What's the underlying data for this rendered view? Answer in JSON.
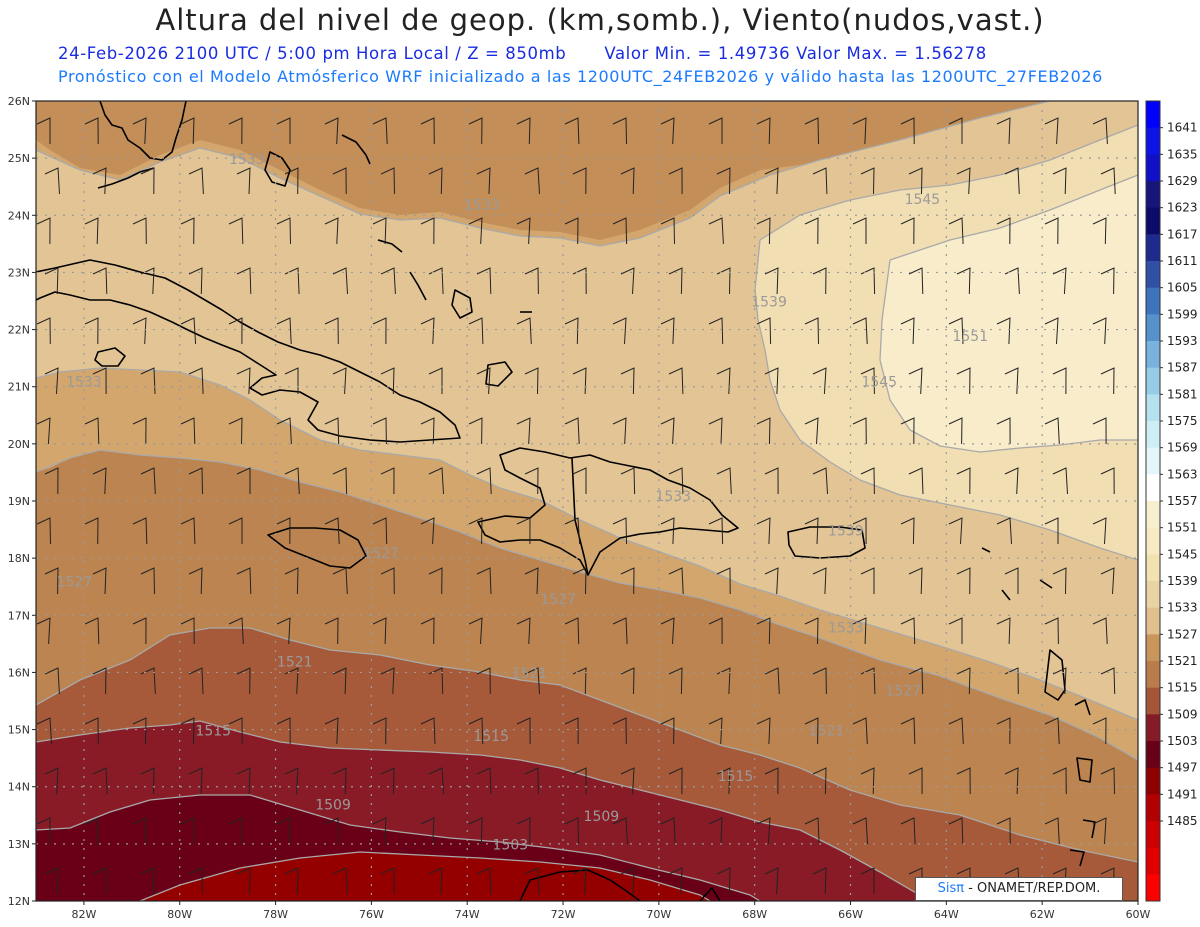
{
  "header": {
    "title": "Altura del nivel de geop. (km,somb.), Viento(nudos,vast.)",
    "subtitle_time": "24-Feb-2026  2100 UTC / 5:00 pm Hora Local / Z = 850mb",
    "subtitle_values": "Valor Min. = 1.49736  Valor Max. = 1.56278",
    "subtitle_model": "Pronóstico con el Modelo Atmósferico WRF inicializado a las 1200UTC_24FEB2026 y válido hasta las  1200UTC_27FEB2026"
  },
  "map": {
    "lon_range": [
      -83,
      -60
    ],
    "lat_range": [
      12,
      26
    ],
    "lat_ticks": [
      "26N",
      "25N",
      "24N",
      "23N",
      "22N",
      "21N",
      "20N",
      "19N",
      "18N",
      "17N",
      "16N",
      "15N",
      "14N",
      "13N",
      "12N"
    ],
    "lon_ticks": [
      "82W",
      "80W",
      "78W",
      "76W",
      "74W",
      "72W",
      "70W",
      "68W",
      "66W",
      "64W",
      "62W",
      "60W"
    ],
    "contour_labels": [
      {
        "text": "1551",
        "lon": -63.5,
        "lat": 21.8
      },
      {
        "text": "1545",
        "lon": -64.5,
        "lat": 24.2
      },
      {
        "text": "1545",
        "lon": -65.4,
        "lat": 21.0
      },
      {
        "text": "1539",
        "lon": -67.7,
        "lat": 22.4
      },
      {
        "text": "1539",
        "lon": -66.1,
        "lat": 18.4
      },
      {
        "text": "1533",
        "lon": -73.7,
        "lat": 24.1
      },
      {
        "text": "1533",
        "lon": -82.0,
        "lat": 21.0
      },
      {
        "text": "1533",
        "lon": -78.6,
        "lat": 24.9
      },
      {
        "text": "1533",
        "lon": -66.1,
        "lat": 16.7
      },
      {
        "text": "1533",
        "lon": -69.7,
        "lat": 19.0
      },
      {
        "text": "1527",
        "lon": -75.8,
        "lat": 18.0
      },
      {
        "text": "1527",
        "lon": -72.1,
        "lat": 17.2
      },
      {
        "text": "1527",
        "lon": -82.2,
        "lat": 17.5
      },
      {
        "text": "1527",
        "lon": -64.9,
        "lat": 15.6
      },
      {
        "text": "1521",
        "lon": -77.6,
        "lat": 16.1
      },
      {
        "text": "1521",
        "lon": -72.7,
        "lat": 15.9
      },
      {
        "text": "1521",
        "lon": -66.5,
        "lat": 14.9
      },
      {
        "text": "1515",
        "lon": -79.3,
        "lat": 14.9
      },
      {
        "text": "1515",
        "lon": -73.5,
        "lat": 14.8
      },
      {
        "text": "1515",
        "lon": -68.4,
        "lat": 14.1
      },
      {
        "text": "1509",
        "lon": -76.8,
        "lat": 13.6
      },
      {
        "text": "1509",
        "lon": -71.2,
        "lat": 13.4
      },
      {
        "text": "1503",
        "lon": -73.1,
        "lat": 12.9
      }
    ]
  },
  "colorbar": {
    "labels": [
      "1641",
      "1635",
      "1629",
      "1623",
      "1617",
      "1611",
      "1605",
      "1599",
      "1593",
      "1587",
      "1581",
      "1575",
      "1569",
      "1563",
      "1557",
      "1551",
      "1545",
      "1539",
      "1533",
      "1527",
      "1521",
      "1515",
      "1509",
      "1503",
      "1497",
      "1491",
      "1485"
    ],
    "colors": [
      "#0000ff",
      "#0d14e6",
      "#1010c8",
      "#15157a",
      "#0b0b6a",
      "#1f2a8f",
      "#3050a8",
      "#3d74bd",
      "#5592cb",
      "#79b2dd",
      "#97cbe6",
      "#b5e0ee",
      "#cdeef5",
      "#e3f6f9",
      "#ffffff",
      "#f7efce",
      "#f6ebc2",
      "#f2e2b1",
      "#e9d3a5",
      "#dfc08e",
      "#c8955b",
      "#bb7c4b",
      "#a55538",
      "#861b28",
      "#6a0018",
      "#8f0000",
      "#b30000",
      "#cc0000",
      "#e00000",
      "#ff0000"
    ]
  },
  "credit": {
    "sis": "Sisπ",
    "text": "- ONAMET/REP.DOM."
  }
}
